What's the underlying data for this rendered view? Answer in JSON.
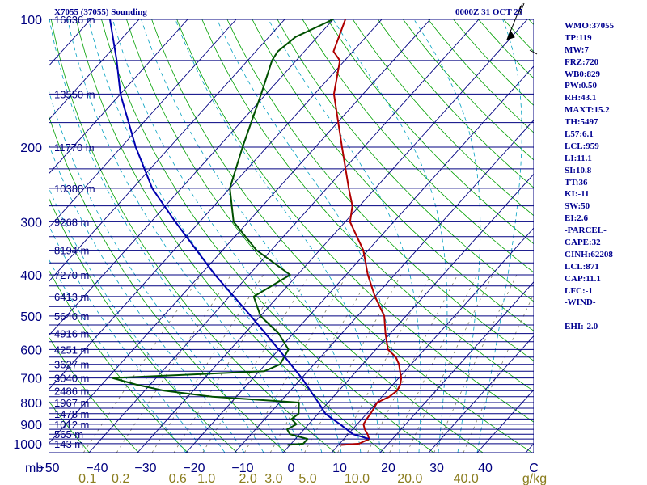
{
  "header": {
    "station": "X7055 (37055) Sounding",
    "time": "0000Z 31 OCT 25"
  },
  "indices": [
    "WMO:37055",
    "TP:119",
    "MW:7",
    "FRZ:720",
    "WB0:829",
    "PW:0.50",
    "RH:43.1",
    "MAXT:15.2",
    "TH:5497",
    "L57:6.1",
    "LCL:959",
    "LI:11.1",
    "SI:10.8",
    "TT:36",
    "KI:-11",
    "SW:50",
    "EI:2.6",
    "-PARCEL-",
    "CAPE:32",
    "CINH:62208",
    "LCL:871",
    "CAP:11.1",
    "LFC:-1",
    "-WIND-",
    "",
    "EHI:-2.0"
  ],
  "chart_data": {
    "type": "line",
    "title": "X7055 (37055) Sounding",
    "subtitle": "0000Z 31 OCT 25",
    "pressure_axis": {
      "unit_label": "mb",
      "ticks": [
        100,
        200,
        300,
        400,
        500,
        600,
        700,
        800,
        900,
        1000
      ],
      "range": [
        1050,
        100
      ],
      "scale": "log"
    },
    "temperature_axis": {
      "unit_label": "C",
      "ticks": [
        -50,
        -40,
        -30,
        -20,
        -10,
        0,
        10,
        20,
        30,
        40
      ],
      "range": [
        -50,
        50
      ]
    },
    "mixing_ratio_axis": {
      "unit_label": "g/kg",
      "ticks": [
        "0.1",
        "0.2",
        "0.6",
        "1.0",
        "2.0",
        "3.0",
        "5.0",
        "10.0",
        "20.0",
        "40.0"
      ]
    },
    "isobars_mb": [
      100,
      125,
      150,
      175,
      200,
      225,
      250,
      275,
      300,
      325,
      350,
      375,
      400,
      425,
      450,
      475,
      500,
      525,
      550,
      575,
      600,
      625,
      650,
      675,
      700,
      725,
      750,
      775,
      800,
      825,
      850,
      875,
      900,
      925,
      950,
      975,
      1000
    ],
    "height_labels": [
      {
        "p": 100,
        "label": "16636 m"
      },
      {
        "p": 150,
        "label": "13550 m"
      },
      {
        "p": 200,
        "label": "11770 m"
      },
      {
        "p": 250,
        "label": "10388 m"
      },
      {
        "p": 300,
        "label": "9268 m"
      },
      {
        "p": 350,
        "label": "8194 m"
      },
      {
        "p": 400,
        "label": "7270 m"
      },
      {
        "p": 450,
        "label": "6413 m"
      },
      {
        "p": 500,
        "label": "5640 m"
      },
      {
        "p": 550,
        "label": "4916 m"
      },
      {
        "p": 600,
        "label": "4251 m"
      },
      {
        "p": 650,
        "label": "3627 m"
      },
      {
        "p": 700,
        "label": "3040 m"
      },
      {
        "p": 750,
        "label": "2486 m"
      },
      {
        "p": 800,
        "label": "1967 m"
      },
      {
        "p": 850,
        "label": "1478 m"
      },
      {
        "p": 900,
        "label": "1012 m"
      },
      {
        "p": 950,
        "label": "565 m"
      },
      {
        "p": 1000,
        "label": "143 m"
      }
    ],
    "series": [
      {
        "name": "temperature",
        "color": "#b00000",
        "points": [
          {
            "p": 1007,
            "t": 10.5
          },
          {
            "p": 1000,
            "t": 14.0
          },
          {
            "p": 975,
            "t": 15.2
          },
          {
            "p": 950,
            "t": 14.0
          },
          {
            "p": 925,
            "t": 12.5
          },
          {
            "p": 900,
            "t": 11.3
          },
          {
            "p": 875,
            "t": 11.0
          },
          {
            "p": 850,
            "t": 10.8
          },
          {
            "p": 825,
            "t": 10.5
          },
          {
            "p": 800,
            "t": 10.1
          },
          {
            "p": 775,
            "t": 11.5
          },
          {
            "p": 750,
            "t": 12.0
          },
          {
            "p": 725,
            "t": 11.5
          },
          {
            "p": 700,
            "t": 10.5
          },
          {
            "p": 675,
            "t": 9.0
          },
          {
            "p": 650,
            "t": 7.5
          },
          {
            "p": 625,
            "t": 5.5
          },
          {
            "p": 600,
            "t": 2.5
          },
          {
            "p": 550,
            "t": -1.0
          },
          {
            "p": 500,
            "t": -4.5
          },
          {
            "p": 450,
            "t": -10.0
          },
          {
            "p": 400,
            "t": -15.5
          },
          {
            "p": 350,
            "t": -21.0
          },
          {
            "p": 300,
            "t": -29.0
          },
          {
            "p": 275,
            "t": -31.5
          },
          {
            "p": 250,
            "t": -35.5
          },
          {
            "p": 200,
            "t": -44.5
          },
          {
            "p": 150,
            "t": -56.0
          },
          {
            "p": 125,
            "t": -61.0
          },
          {
            "p": 119,
            "t": -64.0
          },
          {
            "p": 100,
            "t": -67.5
          }
        ]
      },
      {
        "name": "dewpoint",
        "color": "#005000",
        "points": [
          {
            "p": 1007,
            "t": -0.5
          },
          {
            "p": 1000,
            "t": 2.5
          },
          {
            "p": 975,
            "t": 2.5
          },
          {
            "p": 950,
            "t": -2.0
          },
          {
            "p": 925,
            "t": -3.5
          },
          {
            "p": 900,
            "t": -2.5
          },
          {
            "p": 875,
            "t": -4.5
          },
          {
            "p": 850,
            "t": -4.0
          },
          {
            "p": 825,
            "t": -5.0
          },
          {
            "p": 800,
            "t": -6.0
          },
          {
            "p": 775,
            "t": -25.0
          },
          {
            "p": 750,
            "t": -36.0
          },
          {
            "p": 725,
            "t": -43.0
          },
          {
            "p": 700,
            "t": -49.0
          },
          {
            "p": 675,
            "t": -19.0
          },
          {
            "p": 650,
            "t": -17.0
          },
          {
            "p": 600,
            "t": -18.0
          },
          {
            "p": 550,
            "t": -23.0
          },
          {
            "p": 500,
            "t": -30.0
          },
          {
            "p": 450,
            "t": -35.0
          },
          {
            "p": 400,
            "t": -31.5
          },
          {
            "p": 350,
            "t": -43.0
          },
          {
            "p": 300,
            "t": -53.0
          },
          {
            "p": 250,
            "t": -60.0
          },
          {
            "p": 200,
            "t": -65.0
          },
          {
            "p": 150,
            "t": -71.0
          },
          {
            "p": 125,
            "t": -75.0
          },
          {
            "p": 119,
            "t": -75.5
          },
          {
            "p": 110,
            "t": -74.5
          },
          {
            "p": 100,
            "t": -70.0
          }
        ]
      },
      {
        "name": "parcel",
        "color": "#0000b0",
        "points": [
          {
            "p": 975,
            "t": 15.2
          },
          {
            "p": 950,
            "t": 11.0
          },
          {
            "p": 900,
            "t": 6.5
          },
          {
            "p": 871,
            "t": 3.6
          },
          {
            "p": 850,
            "t": 1.5
          },
          {
            "p": 800,
            "t": -2.0
          },
          {
            "p": 700,
            "t": -10.0
          },
          {
            "p": 600,
            "t": -20.0
          },
          {
            "p": 500,
            "t": -32.0
          },
          {
            "p": 400,
            "t": -47.0
          },
          {
            "p": 300,
            "t": -65.0
          },
          {
            "p": 250,
            "t": -76.0
          },
          {
            "p": 200,
            "t": -87.0
          },
          {
            "p": 150,
            "t": -100.0
          },
          {
            "p": 125,
            "t": -107.0
          },
          {
            "p": 100,
            "t": -116.0
          }
        ]
      }
    ],
    "colors": {
      "isobar": "#000080",
      "isotherm": "#000080",
      "dry_adiabat": "#00a000",
      "moist_adiabat": "#00a0c0",
      "mixing_ratio": "#707050",
      "tick_label": "#000080",
      "mixing_label": "#8b7d1e"
    }
  }
}
